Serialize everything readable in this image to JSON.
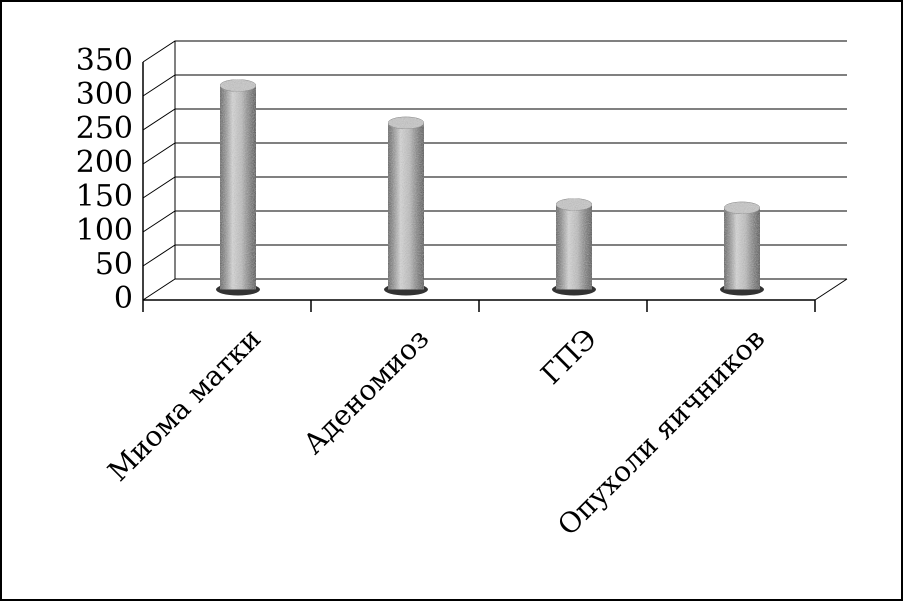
{
  "chart_data": {
    "type": "bar",
    "categories": [
      "Миома матки",
      "Аденомиоз",
      "ГПЭ",
      "Опухоли яичников"
    ],
    "values": [
      300,
      245,
      125,
      120
    ],
    "color": "#9a9a9a",
    "ylim": [
      0,
      350
    ],
    "yticks": [
      0,
      50,
      100,
      150,
      200,
      250,
      300,
      350
    ],
    "grid": true
  }
}
